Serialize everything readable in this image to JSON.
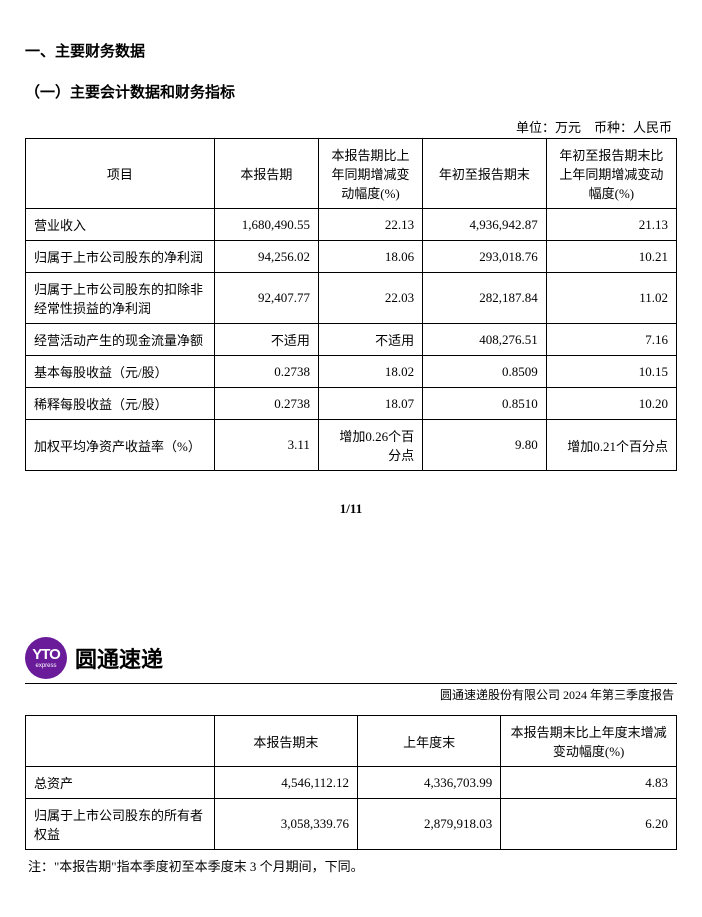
{
  "section": {
    "heading": "一、主要财务数据",
    "subheading": "（一）主要会计数据和财务指标",
    "units": "单位：万元　币种：人民币"
  },
  "table1": {
    "headers": {
      "item": "项目",
      "period": "本报告期",
      "change1": "本报告期比上年同期增减变动幅度(%)",
      "ytd": "年初至报告期末",
      "change2": "年初至报告期末比上年同期增减变动幅度(%)"
    },
    "rows": [
      {
        "item": "营业收入",
        "period": "1,680,490.55",
        "change1": "22.13",
        "ytd": "4,936,942.87",
        "change2": "21.13"
      },
      {
        "item": "归属于上市公司股东的净利润",
        "period": "94,256.02",
        "change1": "18.06",
        "ytd": "293,018.76",
        "change2": "10.21"
      },
      {
        "item": "归属于上市公司股东的扣除非经常性损益的净利润",
        "period": "92,407.77",
        "change1": "22.03",
        "ytd": "282,187.84",
        "change2": "11.02"
      },
      {
        "item": "经营活动产生的现金流量净额",
        "period": "不适用",
        "change1": "不适用",
        "ytd": "408,276.51",
        "change2": "7.16"
      },
      {
        "item": "基本每股收益（元/股）",
        "period": "0.2738",
        "change1": "18.02",
        "ytd": "0.8509",
        "change2": "10.15"
      },
      {
        "item": "稀释每股收益（元/股）",
        "period": "0.2738",
        "change1": "18.07",
        "ytd": "0.8510",
        "change2": "10.20"
      },
      {
        "item": "加权平均净资产收益率（%）",
        "period": "3.11",
        "change1": "增加0.26个百分点",
        "ytd": "9.80",
        "change2": "增加0.21个百分点"
      }
    ]
  },
  "pageNum": "1/11",
  "logo": {
    "abbr": "YTO",
    "sub": "express",
    "company": "圆通速递"
  },
  "reportTitle": "圆通速递股份有限公司 2024 年第三季度报告",
  "table2": {
    "headers": {
      "item": "",
      "a": "本报告期末",
      "b": "上年度末",
      "c": "本报告期末比上年度末增减变动幅度(%)"
    },
    "rows": [
      {
        "item": "总资产",
        "a": "4,546,112.12",
        "b": "4,336,703.99",
        "c": "4.83"
      },
      {
        "item": "归属于上市公司股东的所有者权益",
        "a": "3,058,339.76",
        "b": "2,879,918.03",
        "c": "6.20"
      }
    ]
  },
  "footnote": "注：\"本报告期\"指本季度初至本季度末 3 个月期间，下同。"
}
